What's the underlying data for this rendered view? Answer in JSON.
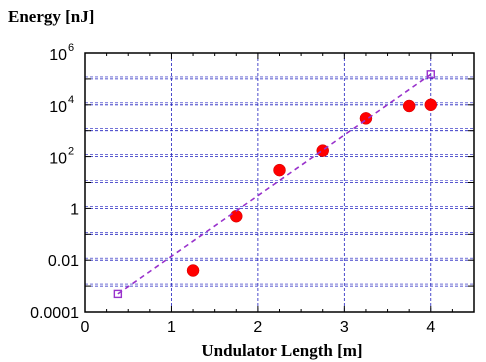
{
  "chart_data": {
    "type": "scatter",
    "ylabel": "Energy [nJ]",
    "xlabel": "Undulator Length [m]",
    "xlim": [
      0,
      4.5
    ],
    "ylim_log10": [
      -4,
      6
    ],
    "y_scale": "log",
    "grid": true,
    "x_ticks": [
      {
        "value": 0,
        "label": "0"
      },
      {
        "value": 1,
        "label": "1"
      },
      {
        "value": 2,
        "label": "2"
      },
      {
        "value": 3,
        "label": "3"
      },
      {
        "value": 4,
        "label": "4"
      }
    ],
    "y_ticks": [
      {
        "exp": 6,
        "label": "10",
        "sup": "6"
      },
      {
        "exp": 4,
        "label": "10",
        "sup": "4"
      },
      {
        "exp": 2,
        "label": "10",
        "sup": "2"
      },
      {
        "exp": 0,
        "label": "1",
        "sup": ""
      },
      {
        "exp": -2,
        "label": "0.01",
        "sup": ""
      },
      {
        "exp": -4,
        "label": "0.0001",
        "sup": ""
      }
    ],
    "series": [
      {
        "style": "markers",
        "color": "#ff0000",
        "points": [
          {
            "x": 1.25,
            "y": 0.004
          },
          {
            "x": 1.75,
            "y": 0.5
          },
          {
            "x": 2.25,
            "y": 30
          },
          {
            "x": 2.75,
            "y": 170
          },
          {
            "x": 3.25,
            "y": 3000
          },
          {
            "x": 3.75,
            "y": 9000
          },
          {
            "x": 4.0,
            "y": 10000
          }
        ]
      },
      {
        "style": "dashed-line",
        "color": "#9932cc",
        "points": [
          {
            "x": 0.38,
            "y": 0.0005
          },
          {
            "x": 4.0,
            "y": 150000
          }
        ]
      }
    ]
  }
}
